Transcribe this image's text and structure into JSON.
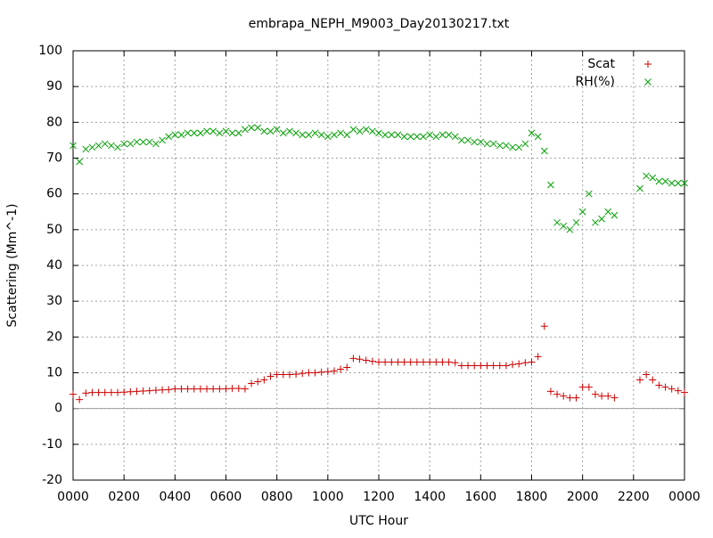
{
  "chart_data": {
    "type": "scatter",
    "title": "embrapa_NEPH_M9003_Day20130217.txt",
    "x_label": "UTC Hour",
    "y_label": "Scattering (Mm^-1)",
    "x": [
      0,
      0.25,
      0.5,
      0.75,
      1,
      1.25,
      1.5,
      1.75,
      2,
      2.25,
      2.5,
      2.75,
      3,
      3.25,
      3.5,
      3.75,
      4,
      4.25,
      4.5,
      4.75,
      5,
      5.25,
      5.5,
      5.75,
      6,
      6.25,
      6.5,
      6.75,
      7,
      7.25,
      7.5,
      7.75,
      8,
      8.25,
      8.5,
      8.75,
      9,
      9.25,
      9.5,
      9.75,
      10,
      10.25,
      10.5,
      10.75,
      11,
      11.25,
      11.5,
      11.75,
      12,
      12.25,
      12.5,
      12.75,
      13,
      13.25,
      13.5,
      13.75,
      14,
      14.25,
      14.5,
      14.75,
      15,
      15.25,
      15.5,
      15.75,
      16,
      16.25,
      16.5,
      16.75,
      17,
      17.25,
      17.5,
      17.75,
      18,
      18.25,
      18.5,
      18.75,
      19,
      19.25,
      19.5,
      19.75,
      20,
      20.25,
      20.5,
      20.75,
      21,
      21.25,
      21.5,
      21.75,
      22,
      22.25,
      22.5,
      22.75,
      23,
      23.25,
      23.5,
      23.75,
      24
    ],
    "series": [
      {
        "name": "Scat",
        "color": "#d00000",
        "marker": "plus",
        "values": [
          4,
          2.5,
          4.3,
          4.5,
          4.5,
          4.5,
          4.5,
          4.5,
          4.6,
          4.7,
          4.8,
          4.9,
          5,
          5.1,
          5.2,
          5.3,
          5.5,
          5.5,
          5.5,
          5.5,
          5.5,
          5.5,
          5.5,
          5.5,
          5.5,
          5.6,
          5.6,
          5.5,
          7,
          7.5,
          8,
          9,
          9.5,
          9.5,
          9.5,
          9.6,
          9.8,
          10,
          10,
          10.2,
          10.3,
          10.5,
          11,
          11.5,
          14,
          13.8,
          13.5,
          13.2,
          13,
          13,
          13,
          13,
          13,
          13,
          13,
          13,
          13,
          13,
          13,
          13,
          12.8,
          12,
          12,
          12,
          12,
          12,
          12,
          12,
          12,
          12.3,
          12.5,
          12.8,
          13,
          14.5,
          23,
          4.8,
          4,
          3.5,
          3,
          3,
          6,
          6,
          4,
          3.5,
          3.5,
          3,
          null,
          null,
          null,
          8,
          9.5,
          8,
          6.5,
          6,
          5.5,
          5,
          4.5
        ]
      },
      {
        "name": "RH(%)",
        "color": "#00a000",
        "marker": "cross",
        "values": [
          73.5,
          69,
          72.5,
          73,
          73.5,
          74,
          73.5,
          73,
          74,
          74,
          74.5,
          74.5,
          74.5,
          74,
          75,
          76,
          76.5,
          76.5,
          77,
          77,
          77,
          77.5,
          77.5,
          77,
          77.5,
          77,
          77,
          78,
          78.5,
          78.5,
          77.5,
          77.5,
          78,
          77,
          77.5,
          77,
          76.5,
          76.5,
          77,
          76.5,
          76,
          76.5,
          77,
          76.5,
          78,
          77.5,
          78,
          77.5,
          77,
          76.5,
          76.5,
          76.5,
          76,
          76,
          76,
          76,
          76.5,
          76,
          76.5,
          76.5,
          76,
          75,
          75,
          74.5,
          74.5,
          74,
          74,
          73.5,
          73.5,
          73,
          73,
          74,
          77,
          76,
          72,
          62.5,
          52,
          51,
          50,
          52,
          55,
          60,
          52,
          53,
          55,
          54,
          null,
          null,
          null,
          61.5,
          65,
          64.5,
          63.5,
          63.5,
          63,
          63,
          63
        ]
      }
    ],
    "xlim": [
      0,
      24
    ],
    "ylim": [
      -20,
      100
    ],
    "xticks": [
      {
        "value": 0,
        "label": "0000"
      },
      {
        "value": 2,
        "label": "0200"
      },
      {
        "value": 4,
        "label": "0400"
      },
      {
        "value": 6,
        "label": "0600"
      },
      {
        "value": 8,
        "label": "0800"
      },
      {
        "value": 10,
        "label": "1000"
      },
      {
        "value": 12,
        "label": "1200"
      },
      {
        "value": 14,
        "label": "1400"
      },
      {
        "value": 16,
        "label": "1600"
      },
      {
        "value": 18,
        "label": "1800"
      },
      {
        "value": 20,
        "label": "2000"
      },
      {
        "value": 22,
        "label": "2200"
      },
      {
        "value": 24,
        "label": "0000"
      }
    ],
    "yticks": [
      -20,
      -10,
      0,
      10,
      20,
      30,
      40,
      50,
      60,
      70,
      80,
      90,
      100
    ],
    "grid": true,
    "legend": "top-right"
  }
}
